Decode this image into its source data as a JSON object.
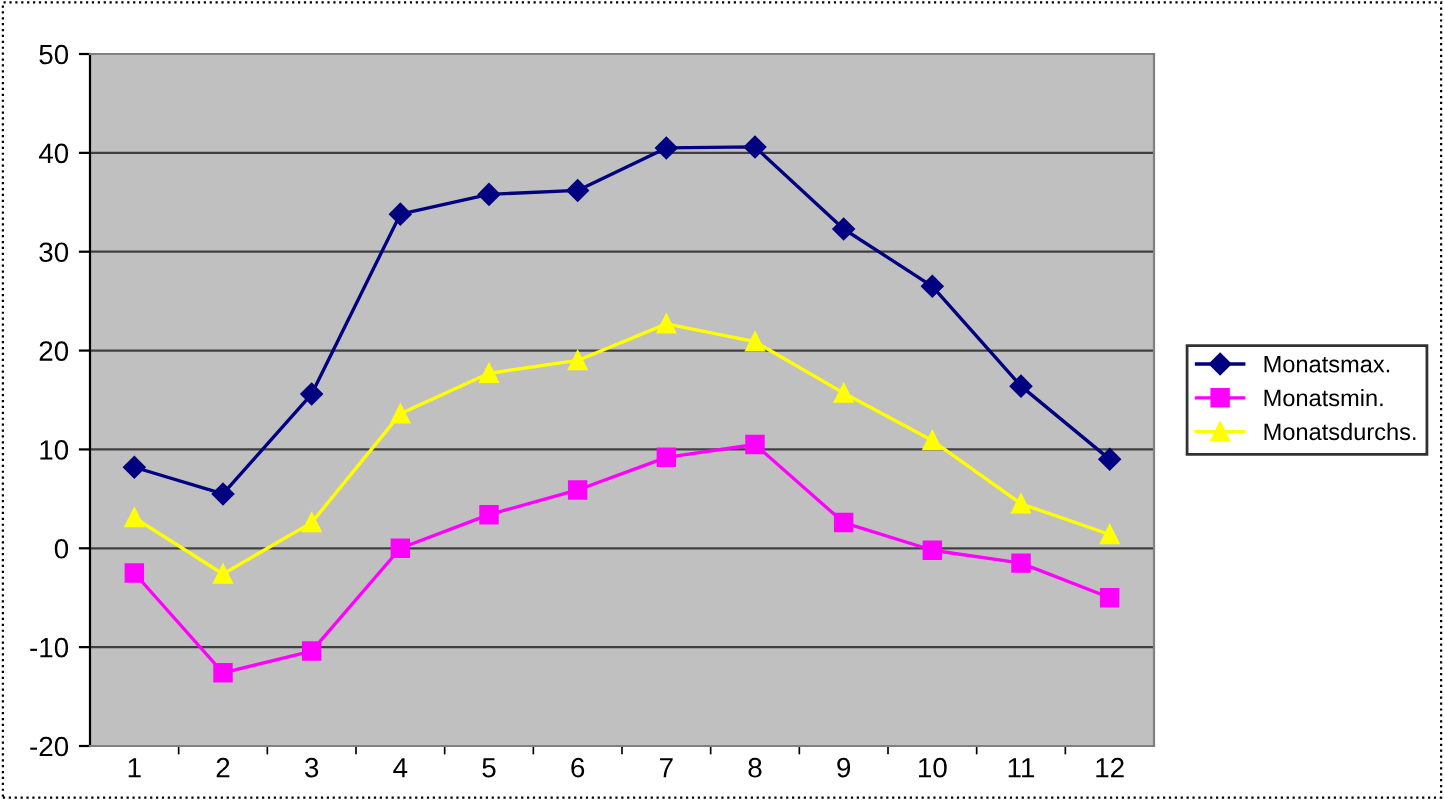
{
  "chart_data": {
    "type": "line",
    "categories": [
      "1",
      "2",
      "3",
      "4",
      "5",
      "6",
      "7",
      "8",
      "9",
      "10",
      "11",
      "12"
    ],
    "series": [
      {
        "name": "Monatsmax.",
        "color": "#000080",
        "marker": "diamond",
        "values": [
          8.2,
          5.5,
          15.6,
          33.8,
          35.8,
          36.2,
          40.5,
          40.6,
          32.3,
          26.5,
          16.4,
          9.0
        ]
      },
      {
        "name": "Monatsmin.",
        "color": "#ff00ff",
        "marker": "square",
        "values": [
          -2.5,
          -12.6,
          -10.4,
          0.0,
          3.4,
          5.9,
          9.2,
          10.5,
          2.6,
          -0.2,
          -1.5,
          -5.0
        ]
      },
      {
        "name": "Monatsdurchs.",
        "color": "#ffff00",
        "marker": "triangle",
        "values": [
          3.1,
          -2.6,
          2.6,
          13.6,
          17.7,
          19.0,
          22.7,
          20.9,
          15.7,
          10.9,
          4.5,
          1.4
        ]
      }
    ],
    "ylim": [
      -20,
      50
    ],
    "yticks": [
      -20,
      -10,
      0,
      10,
      20,
      30,
      40,
      50
    ],
    "grid": "y",
    "legend": "right",
    "line_style": "solid"
  }
}
